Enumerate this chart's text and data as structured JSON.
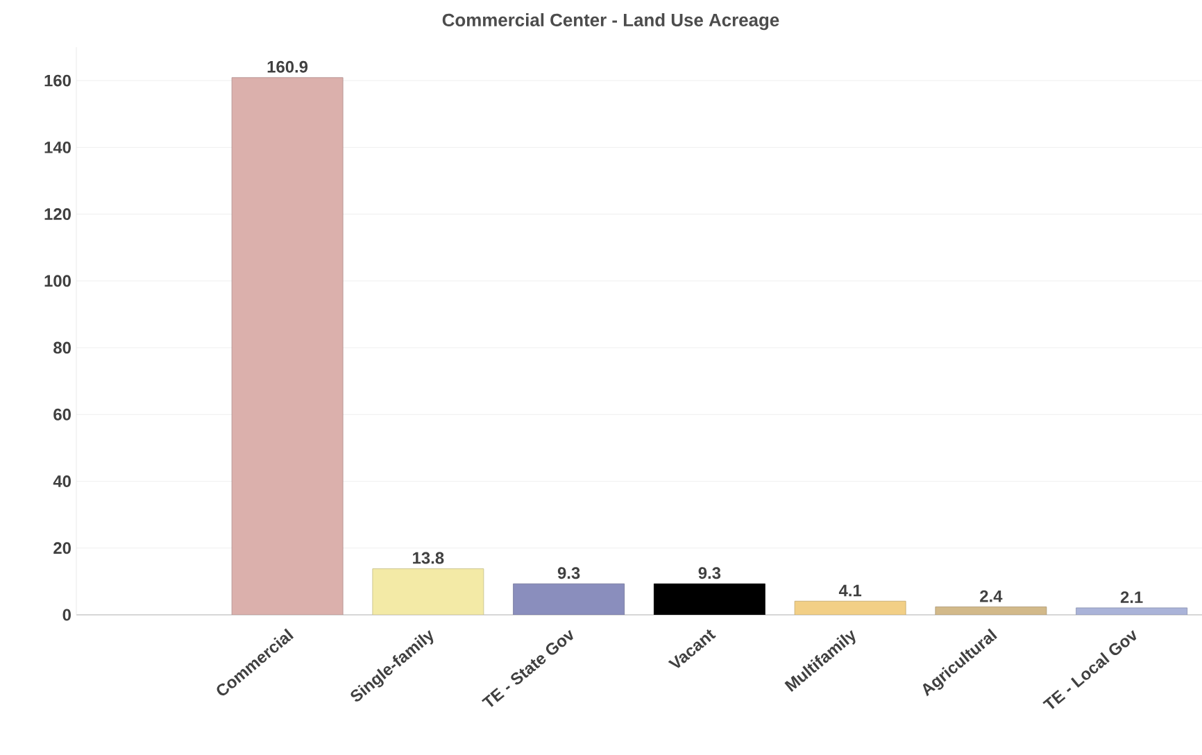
{
  "chart_data": {
    "type": "bar",
    "title": "Commercial Center - Land Use Acreage",
    "categories": [
      "Commercial",
      "Single-family",
      "TE - State Gov",
      "Vacant",
      "Multifamily",
      "Agricultural",
      "TE - Local Gov"
    ],
    "values": [
      160.9,
      13.8,
      9.3,
      9.3,
      4.1,
      2.4,
      2.1
    ],
    "colors": [
      "#dbb0ac",
      "#f3eaa6",
      "#8a8ebd",
      "#000000",
      "#f2cf86",
      "#d2b98a",
      "#aab3d8"
    ],
    "ylim": [
      0,
      170
    ],
    "yticks": [
      0,
      20,
      40,
      60,
      80,
      100,
      120,
      140,
      160
    ],
    "grid": "y",
    "data_labels": true
  }
}
